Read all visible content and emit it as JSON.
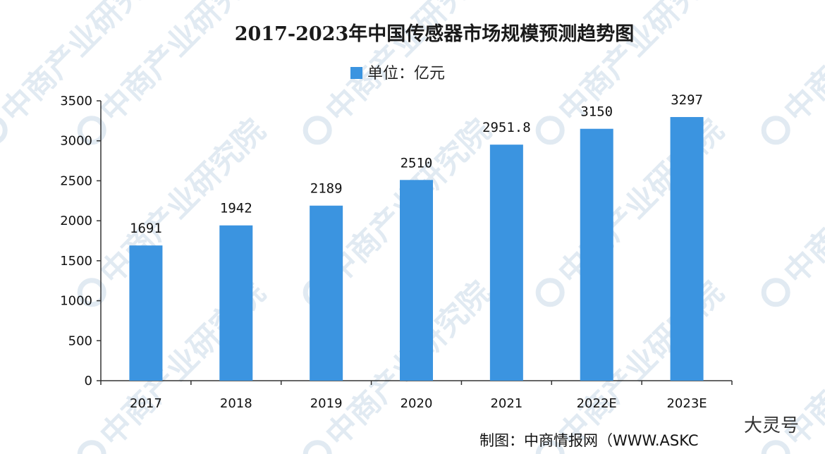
{
  "chart_data": {
    "type": "bar",
    "title": "2017-2023年中国传感器市场规模预测趋势图",
    "legend": {
      "label": "单位：亿元",
      "color": "#3b94e0",
      "placement": "top-center"
    },
    "categories": [
      "2017",
      "2018",
      "2019",
      "2020",
      "2021",
      "2022E",
      "2023E"
    ],
    "values": [
      1691,
      1942,
      2189,
      2510,
      2951.8,
      3150,
      3297
    ],
    "value_labels": [
      "1691",
      "1942",
      "2189",
      "2510",
      "2951.8",
      "3150",
      "3297"
    ],
    "ylim": [
      0,
      3500
    ],
    "yticks": [
      0,
      500,
      1000,
      1500,
      2000,
      2500,
      3000,
      3500
    ],
    "grid": false,
    "bar_color": "#3b94e0"
  },
  "footer": {
    "source": "制图：中商情报网（WWW.ASKC"
  },
  "watermark": {
    "text": "中商产业研究院"
  },
  "stamp": {
    "text": "大灵号"
  }
}
